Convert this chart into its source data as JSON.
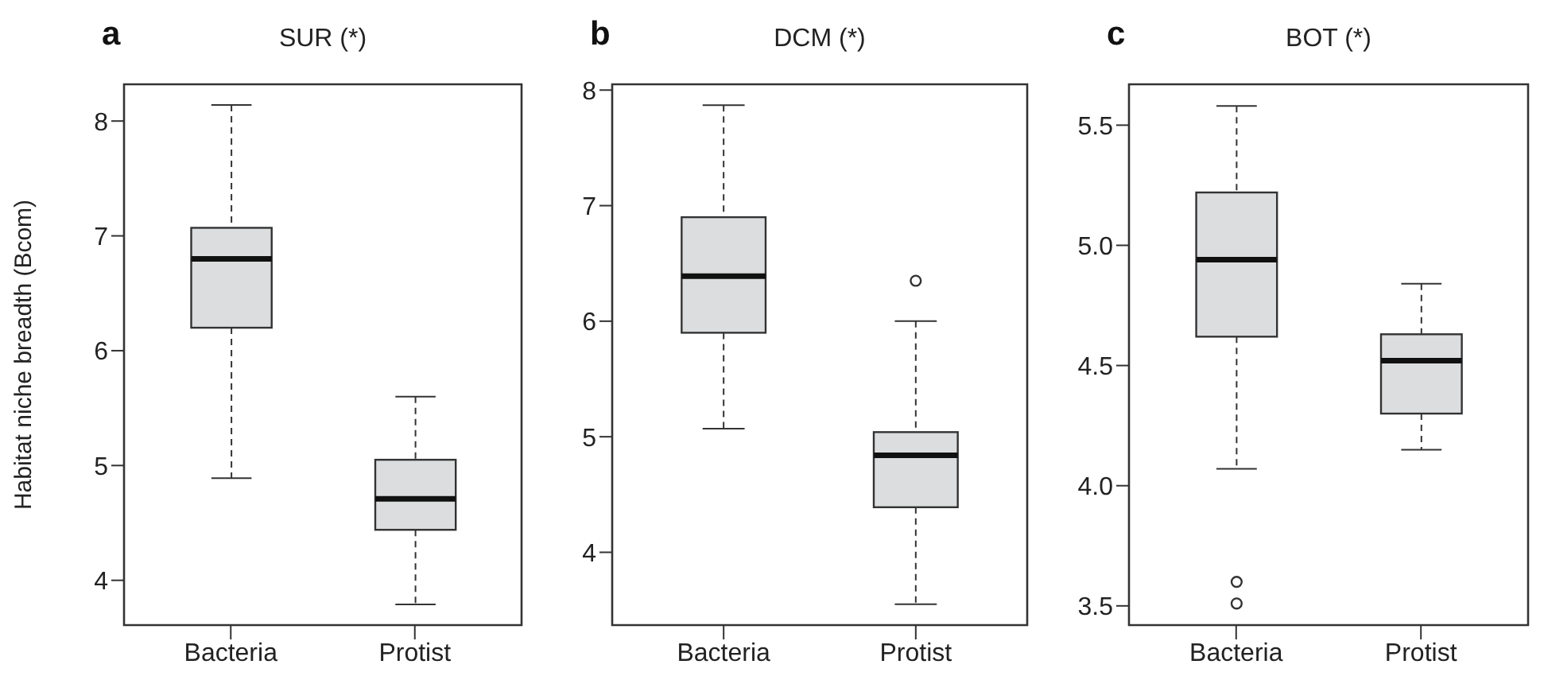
{
  "chart_data": [
    {
      "type": "box",
      "title": "SUR (*)",
      "annotations": [
        "a"
      ],
      "ylabel": "Habitat niche breadth (Bcom)",
      "categories": [
        "Bacteria",
        "Protist"
      ],
      "color": "#dcdddf",
      "ylim": [
        3.61,
        8.32
      ],
      "yticks": [
        4,
        5,
        6,
        7,
        8
      ],
      "grid": false,
      "boxes": [
        {
          "low": 4.89,
          "q1": 6.2,
          "median": 6.8,
          "q3": 7.07,
          "high": 8.14
        },
        {
          "low": 3.79,
          "q1": 4.44,
          "median": 4.71,
          "q3": 5.05,
          "high": 5.6
        }
      ]
    },
    {
      "type": "box",
      "title": "DCM (*)",
      "annotations": [
        "b"
      ],
      "categories": [
        "Bacteria",
        "Protist"
      ],
      "color": "#dcdddf",
      "ylim": [
        3.37,
        8.05
      ],
      "yticks": [
        4,
        5,
        6,
        7,
        8
      ],
      "grid": false,
      "boxes": [
        {
          "low": 5.07,
          "q1": 5.9,
          "median": 6.39,
          "q3": 6.9,
          "high": 7.87
        },
        {
          "low": 3.55,
          "q1": 4.39,
          "median": 4.84,
          "q3": 5.04,
          "high": 6.0,
          "outliers": [
            6.35
          ]
        }
      ]
    },
    {
      "type": "box",
      "title": "BOT (*)",
      "annotations": [
        "c"
      ],
      "categories": [
        "Bacteria",
        "Protist"
      ],
      "color": "#dcdddf",
      "ylim": [
        3.42,
        5.67
      ],
      "yticks": [
        {
          "value": 3.5,
          "label": "3.5"
        },
        {
          "value": 4,
          "label": "4.0"
        },
        {
          "value": 4.5,
          "label": "4.5"
        },
        {
          "value": 5,
          "label": "5.0"
        },
        {
          "value": 5.5,
          "label": "5.5"
        }
      ],
      "grid": false,
      "boxes": [
        {
          "low": 4.07,
          "q1": 4.62,
          "median": 4.94,
          "q3": 5.22,
          "high": 5.58,
          "outliers": [
            3.6,
            3.51
          ]
        },
        {
          "low": 4.15,
          "q1": 4.3,
          "median": 4.52,
          "q3": 4.63,
          "high": 4.84
        }
      ]
    }
  ]
}
